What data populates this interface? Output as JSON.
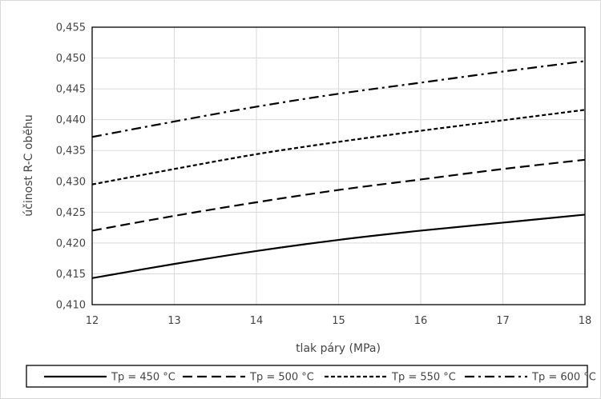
{
  "chart_data": {
    "type": "line",
    "title": "",
    "xlabel": "tlak páry (MPa)",
    "ylabel": "účinost R-C oběhu",
    "xlim": [
      12,
      18
    ],
    "ylim": [
      0.41,
      0.455
    ],
    "x_ticks": [
      "12",
      "13",
      "14",
      "15",
      "16",
      "17",
      "18"
    ],
    "y_ticks": [
      "0,410",
      "0,415",
      "0,420",
      "0,425",
      "0,430",
      "0,435",
      "0,440",
      "0,445",
      "0,450",
      "0,455"
    ],
    "grid": true,
    "legend_position": "bottom",
    "x": [
      12,
      13,
      14,
      15,
      16,
      17,
      18
    ],
    "series": [
      {
        "name": "Tp = 450 °C",
        "values": [
          0.4143,
          0.4166,
          0.4187,
          0.4205,
          0.422,
          0.4233,
          0.4246
        ],
        "line_style": "solid",
        "color": "#000000"
      },
      {
        "name": "Tp = 500 °C",
        "values": [
          0.422,
          0.4244,
          0.4266,
          0.4286,
          0.4303,
          0.432,
          0.4335
        ],
        "line_style": "dashed",
        "color": "#000000"
      },
      {
        "name": "Tp = 550 °C",
        "values": [
          0.4295,
          0.432,
          0.4344,
          0.4364,
          0.4382,
          0.4399,
          0.4416
        ],
        "line_style": "short-dashed",
        "color": "#000000"
      },
      {
        "name": "Tp = 600 °C",
        "values": [
          0.4372,
          0.4397,
          0.4421,
          0.4442,
          0.446,
          0.4478,
          0.4495
        ],
        "line_style": "dash-dot",
        "color": "#000000"
      }
    ]
  }
}
